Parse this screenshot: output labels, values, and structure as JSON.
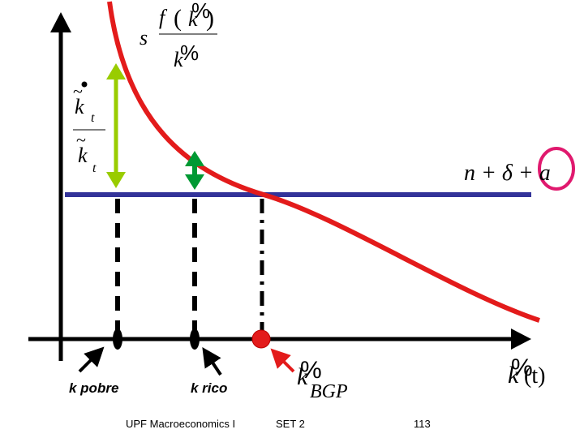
{
  "curve_label": {
    "coef": "s",
    "func": "f",
    "open": "(",
    "var": "k",
    "close": ")",
    "denom": "k",
    "glitch": "%"
  },
  "line_label": "n + δ + a",
  "y_axis_label": {
    "num": "k",
    "num_sub": "t",
    "den": "k",
    "den_sub": "t"
  },
  "steady_state_label": {
    "var": "k",
    "sub": "BGP",
    "glitch": "%"
  },
  "x_axis_label": {
    "var": "k",
    "arg": "(t)",
    "glitch": "%"
  },
  "markers": [
    "k pobre",
    "k rico"
  ],
  "footer": [
    "UPF Macroeconomics I",
    "SET 2",
    "113"
  ]
}
